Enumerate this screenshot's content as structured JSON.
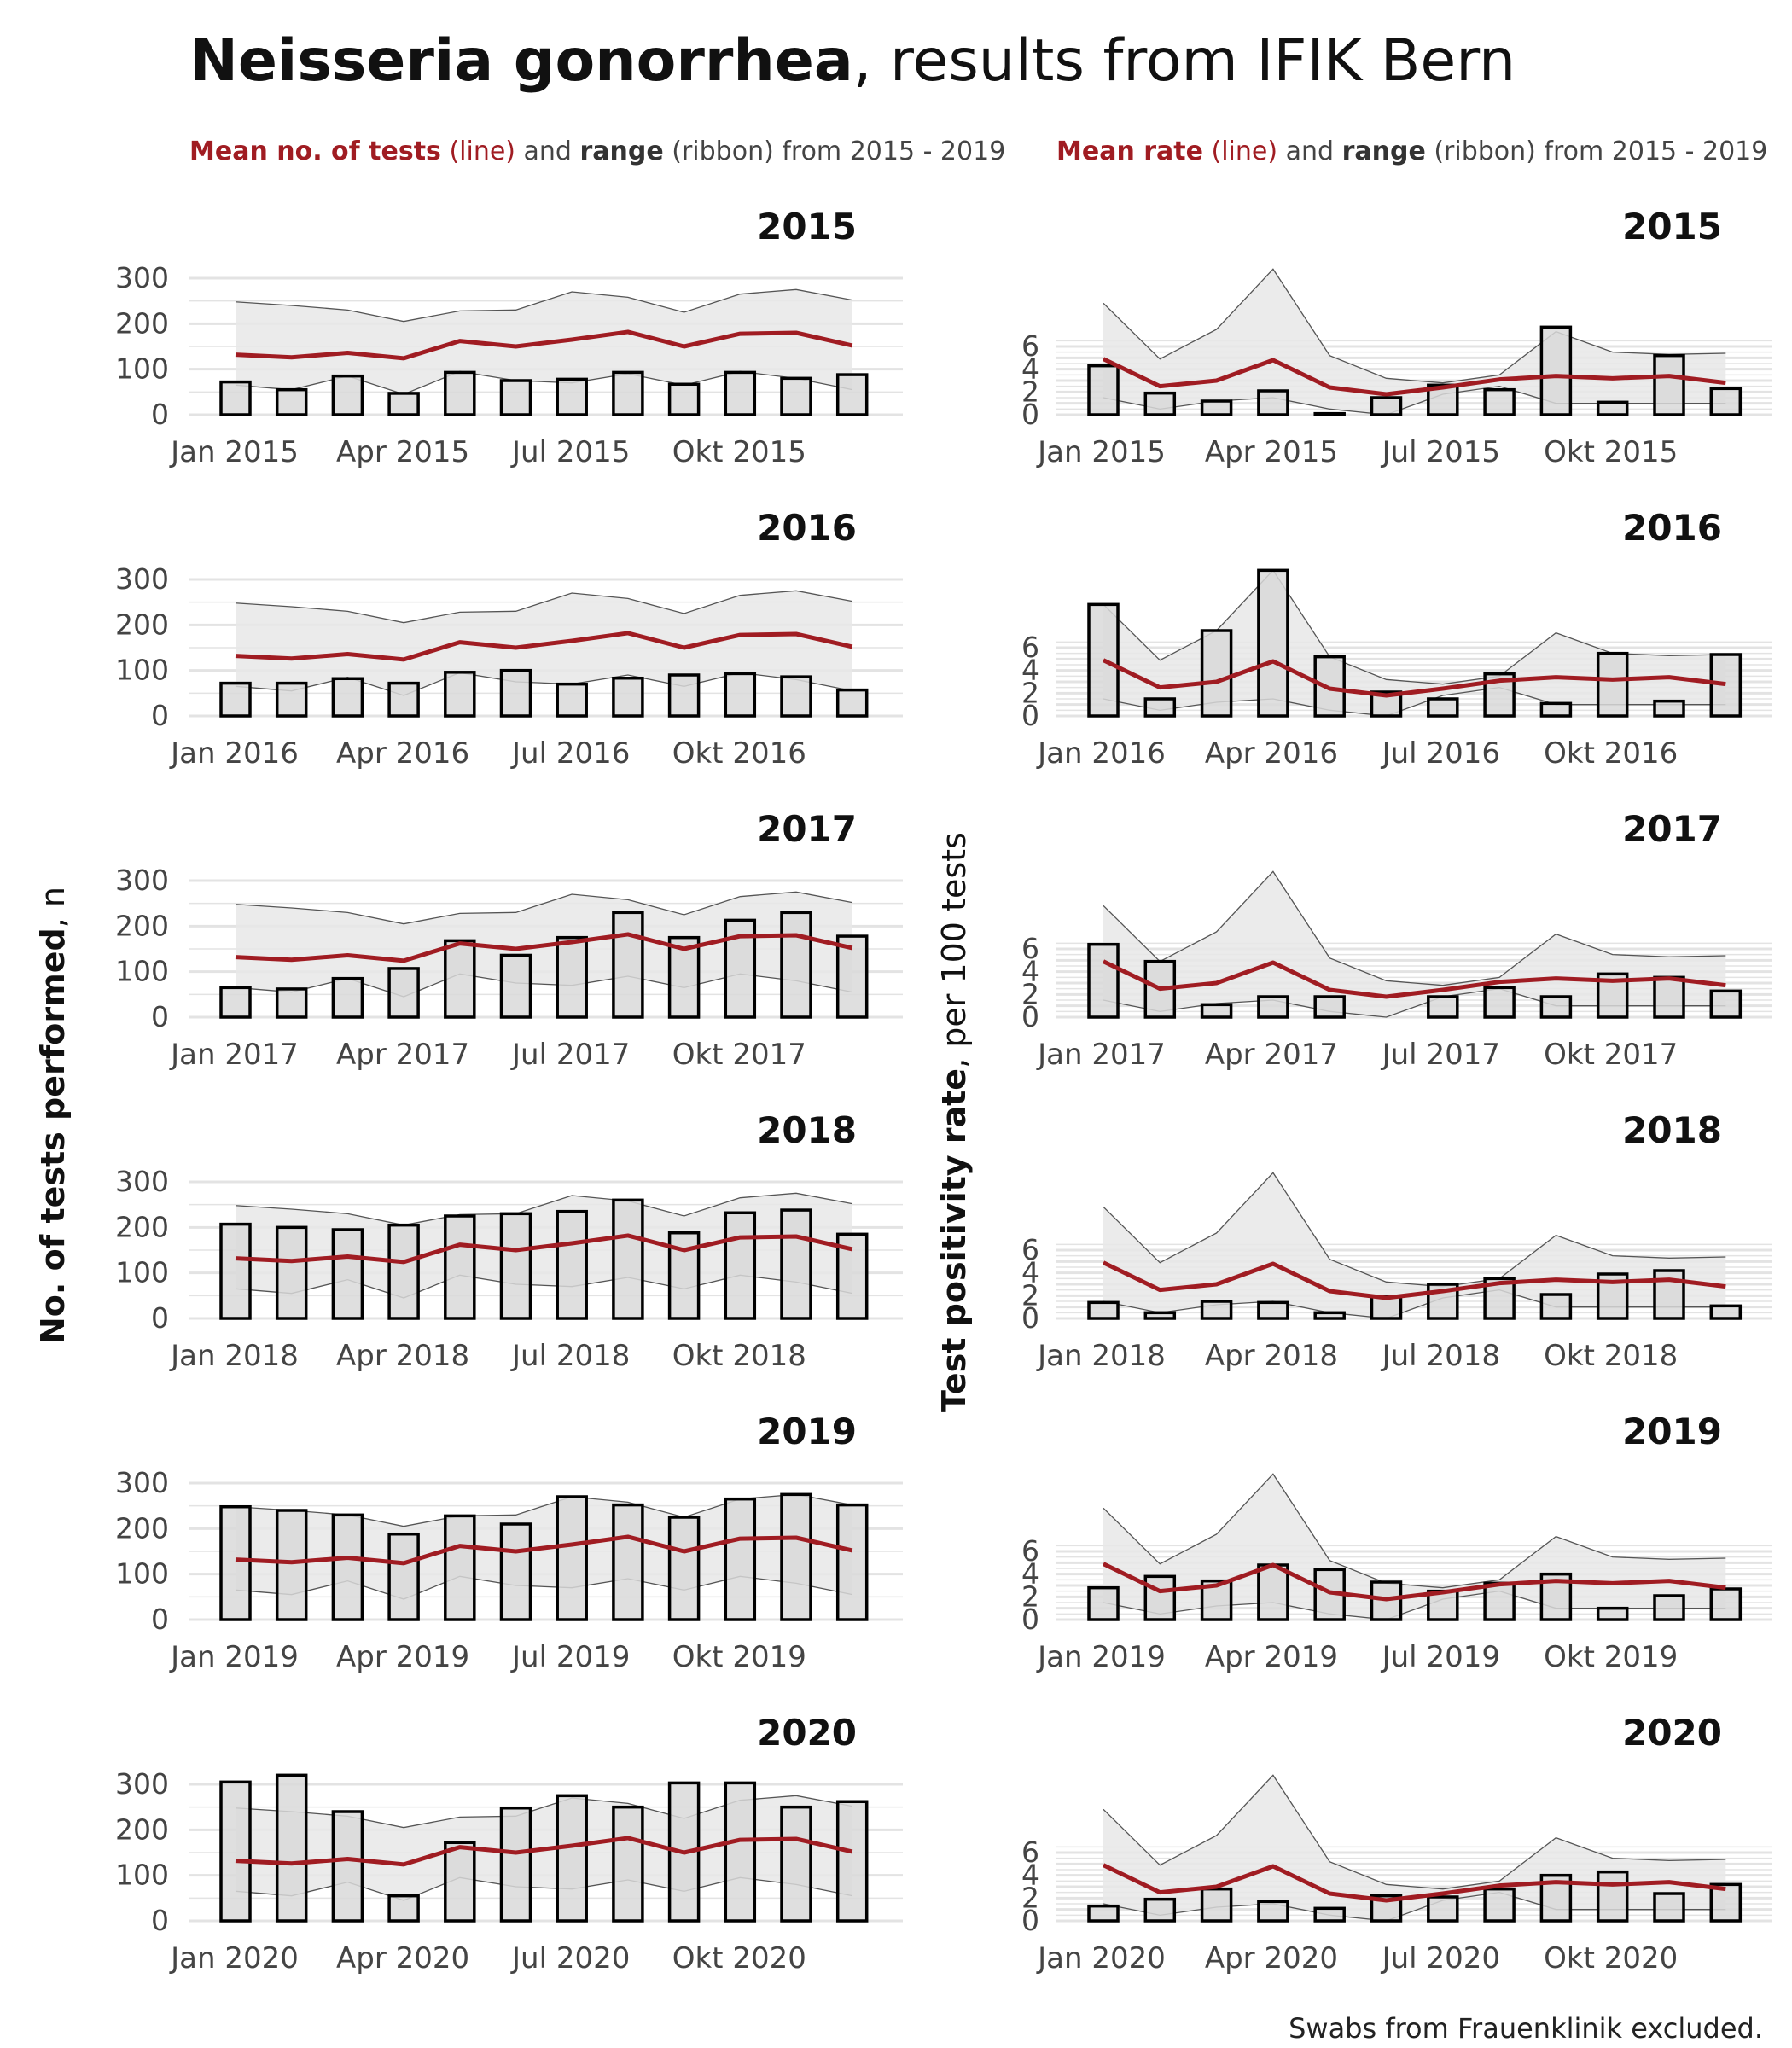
{
  "title": {
    "bold": "Neisseria gonorrhea",
    "rest": ", results from IFIK Bern"
  },
  "subtitle_left": {
    "a": "Mean no. of tests",
    "b": " (line)",
    "c": " and ",
    "d": "range",
    "e": " (ribbon) from 2015 - 2019"
  },
  "subtitle_right": {
    "a": "Mean rate",
    "b": " (line)",
    "c": " and ",
    "d": "range",
    "e": " (ribbon) from 2015 - 2019"
  },
  "y_title_left": {
    "bold": "No. of tests performed",
    "rest": ", n"
  },
  "y_title_right": {
    "bold": "Test positivity rate",
    "rest": ", per 100 tests"
  },
  "caption": "Swabs from Frauenklinik excluded.",
  "colors": {
    "mean_line": "#a01c22",
    "ribbon": "#e8e8e8",
    "bar_fill": "#d9d9d9",
    "bar_stroke": "#000000",
    "grid": "#e3e3e3"
  },
  "chart_data": [
    {
      "type": "bar",
      "panel": "tests",
      "ylim": [
        0,
        300
      ],
      "yticks": [
        0,
        100,
        200,
        300
      ],
      "month_tick_labels": [
        "Jan",
        "Apr",
        "Jul",
        "Okt"
      ],
      "reference": {
        "mean": [
          132,
          126,
          136,
          124,
          162,
          150,
          165,
          182,
          150,
          178,
          180,
          152
        ],
        "min": [
          65,
          55,
          85,
          45,
          95,
          75,
          70,
          90,
          65,
          95,
          80,
          55
        ],
        "max": [
          248,
          240,
          230,
          205,
          228,
          230,
          270,
          258,
          225,
          265,
          275,
          252
        ]
      },
      "years": [
        {
          "year": "2015",
          "values": [
            72,
            55,
            85,
            47,
            93,
            75,
            78,
            93,
            67,
            93,
            80,
            88
          ]
        },
        {
          "year": "2016",
          "values": [
            72,
            72,
            82,
            72,
            96,
            100,
            70,
            83,
            90,
            93,
            86,
            57
          ]
        },
        {
          "year": "2017",
          "values": [
            65,
            62,
            85,
            107,
            168,
            136,
            175,
            230,
            175,
            213,
            230,
            178
          ]
        },
        {
          "year": "2018",
          "values": [
            207,
            200,
            195,
            205,
            225,
            230,
            235,
            260,
            188,
            232,
            238,
            185
          ]
        },
        {
          "year": "2019",
          "values": [
            248,
            240,
            230,
            188,
            228,
            210,
            270,
            252,
            225,
            265,
            275,
            252
          ]
        },
        {
          "year": "2020",
          "values": [
            305,
            320,
            240,
            55,
            172,
            248,
            275,
            250,
            303,
            303,
            250,
            262
          ]
        }
      ]
    },
    {
      "type": "bar",
      "panel": "rate",
      "ylim": [
        0,
        6
      ],
      "yticks": [
        0,
        2,
        4,
        6
      ],
      "month_tick_labels": [
        "Jan",
        "Apr",
        "Jul",
        "Okt"
      ],
      "reference": {
        "mean": [
          4.9,
          2.5,
          3.0,
          4.8,
          2.4,
          1.8,
          2.4,
          3.1,
          3.4,
          3.2,
          3.4,
          2.8
        ],
        "min": [
          1.5,
          0.5,
          1.2,
          1.5,
          0.5,
          0.0,
          1.8,
          2.5,
          1.0,
          1.0,
          1.0,
          1.0
        ],
        "max": [
          9.8,
          4.9,
          7.5,
          12.8,
          5.2,
          3.2,
          2.8,
          3.5,
          7.3,
          5.5,
          5.3,
          5.4
        ]
      },
      "years": [
        {
          "year": "2015",
          "values": [
            4.3,
            1.9,
            1.2,
            2.1,
            0.1,
            1.5,
            2.6,
            2.2,
            7.7,
            1.1,
            5.2,
            2.3
          ]
        },
        {
          "year": "2016",
          "values": [
            9.8,
            1.5,
            7.5,
            12.8,
            5.2,
            2.1,
            1.5,
            3.7,
            1.1,
            5.5,
            1.3,
            5.4
          ]
        },
        {
          "year": "2017",
          "values": [
            6.4,
            4.9,
            1.1,
            1.8,
            1.8,
            0.0,
            1.8,
            2.6,
            1.8,
            3.8,
            3.5,
            2.3
          ]
        },
        {
          "year": "2018",
          "values": [
            1.4,
            0.5,
            1.5,
            1.4,
            0.5,
            1.9,
            3.0,
            3.5,
            2.1,
            3.9,
            4.2,
            1.1
          ]
        },
        {
          "year": "2019",
          "values": [
            2.8,
            3.8,
            3.4,
            4.8,
            4.4,
            3.3,
            2.5,
            3.2,
            4.0,
            1.0,
            2.1,
            2.7
          ]
        },
        {
          "year": "2020",
          "values": [
            1.3,
            1.9,
            2.8,
            1.7,
            1.1,
            2.2,
            2.1,
            2.8,
            4.0,
            4.3,
            2.4,
            3.2
          ]
        }
      ]
    }
  ]
}
